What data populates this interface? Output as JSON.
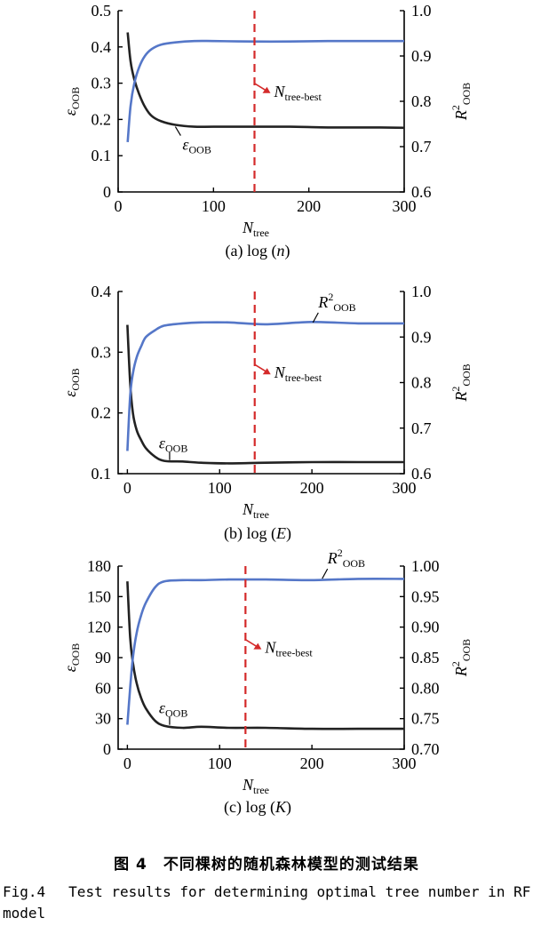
{
  "x_axis_label_main": "N",
  "x_axis_label_sub": "tree",
  "left_axis_label_main": "ε",
  "left_axis_label_sub": "OOB",
  "right_axis_label_main": "R",
  "right_axis_label_sup": "2",
  "right_axis_label_sub": "OOB",
  "best_label_main": "N",
  "best_label_sub": "tree-best",
  "colors": {
    "eps": "#222222",
    "r2": "#5577c8",
    "best": "#d42a2a",
    "axis": "#000000"
  },
  "caption": {
    "zh": "图 4　不同棵树的随机森林模型的测试结果",
    "en_label": "Fig.4",
    "en_text": "Test results for determining optimal tree number in RF model"
  },
  "chart_data": [
    {
      "type": "line",
      "subplot_label": "(a) log (n)",
      "x_ticks": [
        0,
        100,
        200,
        300
      ],
      "xlim": [
        0,
        300
      ],
      "y_left_ticks": [
        "0",
        "0.1",
        "0.2",
        "0.3",
        "0.4",
        "0.5"
      ],
      "ylim_left": [
        0,
        0.5
      ],
      "y_right_ticks": [
        "0.6",
        "0.7",
        "0.8",
        "0.9",
        "1.0"
      ],
      "ylim_right": [
        0.6,
        1.0
      ],
      "n_tree_best": 143,
      "series": [
        {
          "axis": "left",
          "x": [
            10,
            13,
            17,
            22,
            28,
            35,
            45,
            60,
            80,
            100,
            140,
            180,
            220,
            260,
            300
          ],
          "y": [
            0.44,
            0.36,
            0.31,
            0.27,
            0.235,
            0.21,
            0.195,
            0.185,
            0.18,
            0.18,
            0.18,
            0.18,
            0.178,
            0.178,
            0.177
          ]
        },
        {
          "axis": "right",
          "x": [
            10,
            13,
            17,
            22,
            28,
            35,
            45,
            60,
            80,
            100,
            140,
            180,
            220,
            260,
            300
          ],
          "y": [
            0.71,
            0.79,
            0.84,
            0.875,
            0.9,
            0.915,
            0.925,
            0.93,
            0.933,
            0.933,
            0.932,
            0.932,
            0.933,
            0.933,
            0.933
          ]
        }
      ],
      "annotations": [
        {
          "text": "ε",
          "sub": "OOB",
          "target": "left",
          "x": 60,
          "y": 0.185
        }
      ]
    },
    {
      "type": "line",
      "subplot_label": "(b) log (E)",
      "x_ticks": [
        0,
        100,
        200,
        300
      ],
      "xlim": [
        -10,
        300
      ],
      "y_left_ticks": [
        "0.1",
        "0.2",
        "0.3",
        "0.4"
      ],
      "ylim_left": [
        0.1,
        0.4
      ],
      "y_right_ticks": [
        "0.6",
        "0.7",
        "0.8",
        "0.9",
        "1.0"
      ],
      "ylim_right": [
        0.6,
        1.0
      ],
      "n_tree_best": 138,
      "series": [
        {
          "axis": "left",
          "x": [
            0,
            3,
            6,
            10,
            15,
            20,
            30,
            40,
            60,
            80,
            110,
            150,
            200,
            250,
            300
          ],
          "y": [
            0.345,
            0.25,
            0.2,
            0.172,
            0.155,
            0.142,
            0.128,
            0.121,
            0.12,
            0.118,
            0.117,
            0.118,
            0.119,
            0.119,
            0.119
          ]
        },
        {
          "axis": "right",
          "x": [
            0,
            3,
            6,
            10,
            15,
            20,
            30,
            40,
            60,
            80,
            110,
            150,
            200,
            250,
            300
          ],
          "y": [
            0.65,
            0.77,
            0.82,
            0.855,
            0.88,
            0.9,
            0.915,
            0.925,
            0.93,
            0.932,
            0.932,
            0.928,
            0.933,
            0.93,
            0.93
          ]
        }
      ],
      "annotations": [
        {
          "text": "R",
          "sup": "2",
          "sub": "OOB",
          "target": "right",
          "x": 205,
          "y": 0.93
        },
        {
          "text": "ε",
          "sub": "OOB",
          "target": "left",
          "x": 40,
          "y": 0.121
        }
      ]
    },
    {
      "type": "line",
      "subplot_label": "(c) log (K)",
      "x_ticks": [
        0,
        100,
        200,
        300
      ],
      "xlim": [
        -10,
        300
      ],
      "y_left_ticks": [
        "0",
        "30",
        "60",
        "90",
        "120",
        "150",
        "180"
      ],
      "ylim_left": [
        0,
        180
      ],
      "y_right_ticks": [
        "0.70",
        "0.75",
        "0.80",
        "0.85",
        "0.90",
        "0.95",
        "1.00"
      ],
      "ylim_right": [
        0.7,
        1.0
      ],
      "n_tree_best": 128,
      "series": [
        {
          "axis": "left",
          "x": [
            0,
            3,
            6,
            10,
            15,
            20,
            30,
            40,
            60,
            80,
            110,
            150,
            200,
            250,
            300
          ],
          "y": [
            165,
            110,
            85,
            65,
            50,
            40,
            28,
            23,
            21,
            22,
            21,
            21,
            20,
            20,
            20
          ]
        },
        {
          "axis": "right",
          "x": [
            0,
            3,
            6,
            10,
            15,
            20,
            30,
            40,
            60,
            80,
            110,
            150,
            200,
            250,
            300
          ],
          "y": [
            0.74,
            0.8,
            0.85,
            0.89,
            0.92,
            0.94,
            0.965,
            0.975,
            0.977,
            0.977,
            0.978,
            0.978,
            0.977,
            0.979,
            0.979
          ]
        }
      ],
      "annotations": [
        {
          "text": "R",
          "sup": "2",
          "sub": "OOB",
          "target": "right",
          "x": 215,
          "y": 0.978
        },
        {
          "text": "ε",
          "sub": "OOB",
          "target": "left",
          "x": 40,
          "y": 23
        }
      ]
    }
  ]
}
